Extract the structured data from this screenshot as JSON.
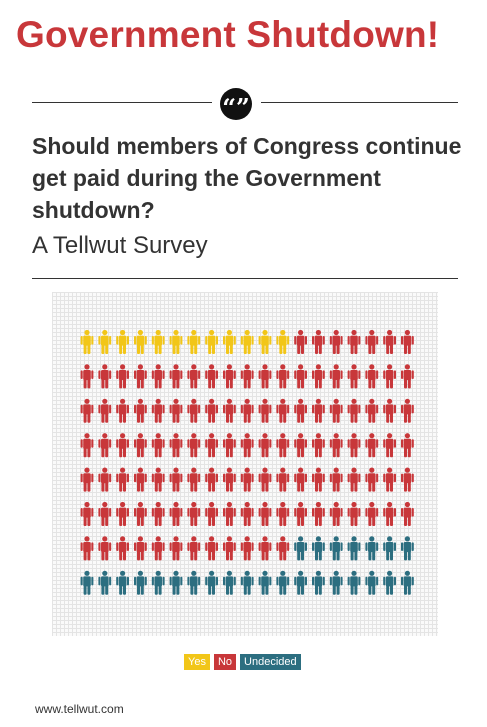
{
  "header": {
    "title": "Government Shutdown!",
    "quote_glyph": "“”",
    "question": "Should members of Congress continue get paid during the Government shutdown?",
    "subtitle": "A Tellwut Survey"
  },
  "chart_data": {
    "type": "pictograph",
    "unit_icon": "person-icon",
    "rows": 8,
    "columns": 19,
    "categories": [
      "Yes",
      "No",
      "Undecided"
    ],
    "values": [
      12,
      114,
      26
    ],
    "colors": [
      "#f2c618",
      "#c8373a",
      "#2c6e80"
    ],
    "legend": [
      {
        "label": "Yes",
        "color": "#f2c618"
      },
      {
        "label": "No",
        "color": "#c8373a"
      },
      {
        "label": "Undecided",
        "color": "#2c6e80"
      }
    ],
    "grid": true
  },
  "footer": {
    "url": "www.tellwut.com"
  }
}
